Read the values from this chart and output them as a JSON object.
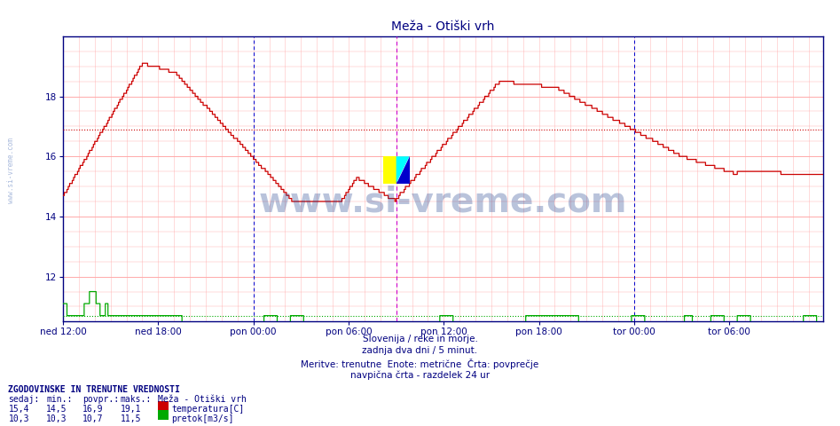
{
  "title": "Meža - Otiški vrh",
  "bg_color": "#ffffff",
  "plot_bg_color": "#ffffff",
  "grid_color_h": "#ffaaaa",
  "grid_color_v": "#ffcccc",
  "xlim": [
    0,
    575
  ],
  "ylim": [
    10.5,
    20.0
  ],
  "yticks": [
    12,
    14,
    16,
    18
  ],
  "xtick_positions": [
    0,
    72,
    144,
    216,
    288,
    360,
    432,
    504
  ],
  "xtick_labels": [
    "ned 12:00",
    "ned 18:00",
    "pon 00:00",
    "pon 06:00",
    "pon 12:00",
    "pon 18:00",
    "tor 00:00",
    "tor 06:00"
  ],
  "avg_temp": 16.9,
  "avg_flow": 10.7,
  "vertical_line_magenta": 252,
  "vertical_lines_blue": [
    144,
    432
  ],
  "temp_color": "#cc0000",
  "flow_color": "#00aa00",
  "avg_temp_color": "#cc0000",
  "avg_flow_color": "#00aa00",
  "watermark_text": "www.si-vreme.com",
  "footer_lines": [
    "Slovenija / reke in morje.",
    "zadnja dva dni / 5 minut.",
    "Meritve: trenutne  Enote: metrične  Črta: povprečje",
    "navpična črta - razdelek 24 ur"
  ],
  "legend_title": "ZGODOVINSKE IN TRENUTNE VREDNOSTI",
  "legend_headers": [
    "sedaj:",
    "min.:",
    "povpr.:",
    "maks.:"
  ],
  "legend_row1": [
    "15,4",
    "14,5",
    "16,9",
    "19,1"
  ],
  "legend_row2": [
    "10,3",
    "10,3",
    "10,7",
    "11,5"
  ],
  "legend_series": [
    "Meža - Otiški vrh",
    "temperatura[C]",
    "pretok[m3/s]"
  ],
  "temp_rect_color": "#cc0000",
  "flow_rect_color": "#00aa00"
}
